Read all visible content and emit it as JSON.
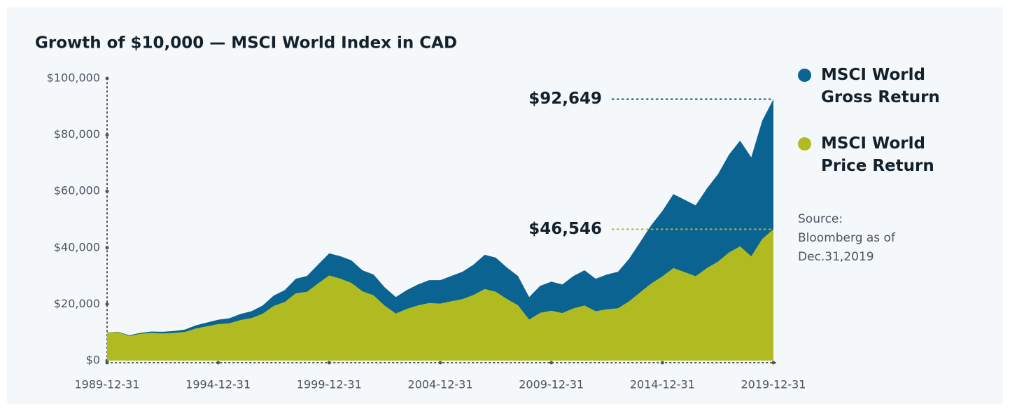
{
  "chart_data": {
    "type": "area",
    "title": "Growth of $10,000 — MSCI World Index in CAD",
    "source": "Source: Bloomberg as of Dec.31,2019",
    "x": [
      "1989-12-31",
      "1990-06-30",
      "1990-12-31",
      "1991-06-30",
      "1991-12-31",
      "1992-06-30",
      "1992-12-31",
      "1993-06-30",
      "1993-12-31",
      "1994-06-30",
      "1994-12-31",
      "1995-06-30",
      "1995-12-31",
      "1996-06-30",
      "1996-12-31",
      "1997-06-30",
      "1997-12-31",
      "1998-06-30",
      "1998-12-31",
      "1999-06-30",
      "1999-12-31",
      "2000-06-30",
      "2000-12-31",
      "2001-06-30",
      "2001-12-31",
      "2002-06-30",
      "2002-12-31",
      "2003-06-30",
      "2003-12-31",
      "2004-06-30",
      "2004-12-31",
      "2005-06-30",
      "2005-12-31",
      "2006-06-30",
      "2006-12-31",
      "2007-06-30",
      "2007-12-31",
      "2008-06-30",
      "2008-12-31",
      "2009-06-30",
      "2009-12-31",
      "2010-06-30",
      "2010-12-31",
      "2011-06-30",
      "2011-12-31",
      "2012-06-30",
      "2012-12-31",
      "2013-06-30",
      "2013-12-31",
      "2014-06-30",
      "2014-12-31",
      "2015-06-30",
      "2015-12-31",
      "2016-06-30",
      "2016-12-31",
      "2017-06-30",
      "2017-12-31",
      "2018-06-30",
      "2018-12-31",
      "2019-06-30",
      "2019-12-31"
    ],
    "series": [
      {
        "name": "MSCI World Gross Return",
        "color": "#0b6391",
        "end_label": "$92,649",
        "values": [
          10000,
          10200,
          9000,
          9800,
          10300,
          10200,
          10500,
          11000,
          12500,
          13500,
          14500,
          15000,
          16500,
          17500,
          19500,
          23000,
          25000,
          29000,
          30000,
          34000,
          38000,
          37000,
          35500,
          32000,
          30500,
          26000,
          22500,
          25000,
          27000,
          28500,
          28500,
          30000,
          31500,
          34000,
          37500,
          36500,
          33000,
          30000,
          22500,
          26500,
          28000,
          27000,
          30000,
          32000,
          29000,
          30500,
          31500,
          36000,
          42000,
          48000,
          53000,
          59000,
          57000,
          55000,
          61000,
          66000,
          73000,
          78000,
          72000,
          85000,
          92649
        ]
      },
      {
        "name": "MSCI World Price Return",
        "color": "#afbb21",
        "end_label": "$46,546",
        "values": [
          10000,
          10080,
          8790,
          9470,
          9830,
          9630,
          9800,
          10150,
          11400,
          12170,
          12920,
          13210,
          14370,
          15060,
          16590,
          19350,
          20790,
          23840,
          24380,
          27320,
          30180,
          29050,
          27550,
          24570,
          23150,
          19510,
          16690,
          18330,
          19570,
          20430,
          20190,
          21010,
          21810,
          23270,
          25370,
          24420,
          21830,
          19620,
          14540,
          16930,
          17680,
          16850,
          18510,
          19520,
          17490,
          18190,
          18570,
          20980,
          24190,
          27330,
          29830,
          32830,
          31360,
          29910,
          32780,
          35060,
          38340,
          40500,
          36960,
          43130,
          46546
        ]
      }
    ],
    "xlim": [
      "1989-12-31",
      "2019-12-31"
    ],
    "xticks": [
      "1989-12-31",
      "1994-12-31",
      "1999-12-31",
      "2004-12-31",
      "2009-12-31",
      "2014-12-31",
      "2019-12-31"
    ],
    "ylim": [
      0,
      100000
    ],
    "yticks": [
      {
        "value": 0,
        "label": "$0"
      },
      {
        "value": 20000,
        "label": "$20,000"
      },
      {
        "value": 40000,
        "label": "$40,000"
      },
      {
        "value": 60000,
        "label": "$60,000"
      },
      {
        "value": 80000,
        "label": "$80,000"
      },
      {
        "value": 100000,
        "label": "$100,000"
      }
    ],
    "legend": "right"
  }
}
